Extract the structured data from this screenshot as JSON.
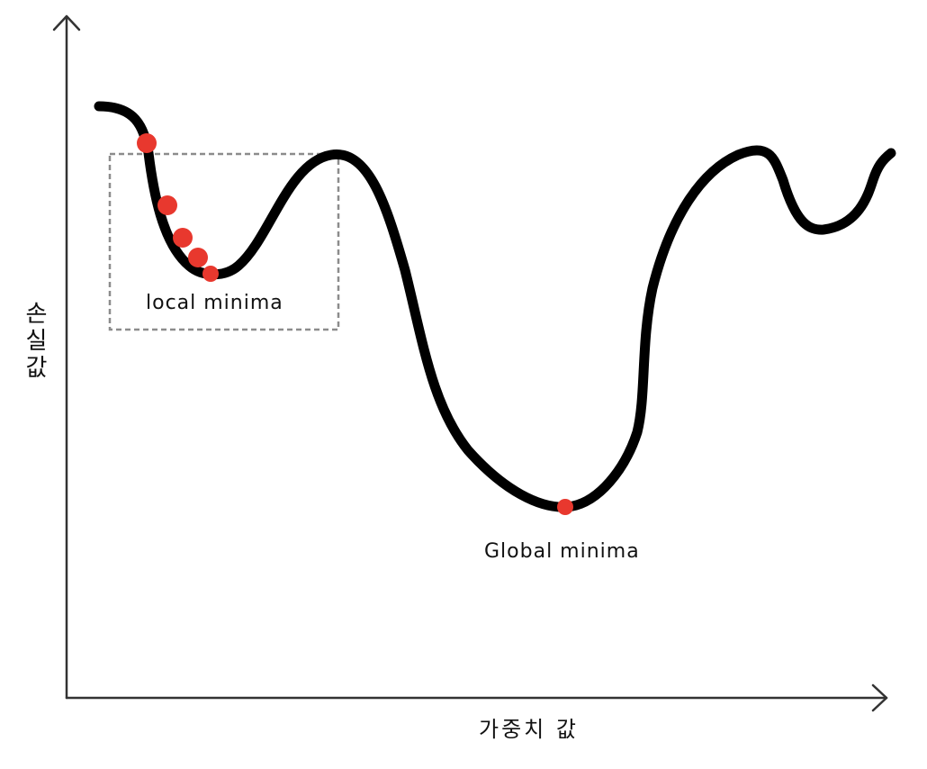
{
  "labels": {
    "local_minima": "local minima",
    "global_minima": "Global minima",
    "x_axis": "가중치 값",
    "y_axis": "손실값"
  },
  "colors": {
    "curve": "#000000",
    "point": "#e8382e",
    "axis": "#333333",
    "box": "#8c8c8c"
  },
  "descent_steps": 5
}
